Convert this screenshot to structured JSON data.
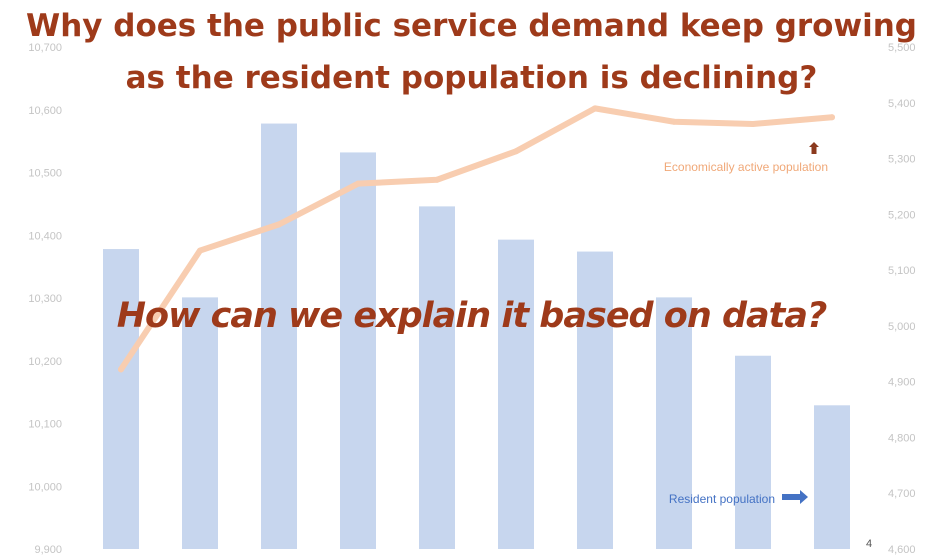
{
  "slide": {
    "title_line_1": "Why does the public service demand keep growing",
    "title_line_2": "as the resident population  is declining?",
    "question": "How can we explain it based on data?",
    "page_number": "4"
  },
  "colors": {
    "bar": "#c7d6ee",
    "line": "#f8cdb0",
    "title": "#9e3a1a",
    "axis_text": "#c4c4c4",
    "line_label": "#f0a878",
    "bar_label": "#4472c4",
    "arrow_up": "#8b3a1e",
    "arrow_right": "#4472c4"
  },
  "chart_data": {
    "type": "bar",
    "categories": [
      "",
      "",
      "",
      "",
      "",
      "",
      "",
      "",
      "",
      ""
    ],
    "series": [
      {
        "name": "Resident population",
        "type": "bar",
        "axis": "left",
        "values": [
          10378,
          10301,
          10578,
          10532,
          10446,
          10393,
          10374,
          10301,
          10208,
          10129
        ]
      },
      {
        "name": "Economically active population",
        "type": "line",
        "axis": "right",
        "values": [
          4922,
          5135,
          5182,
          5255,
          5262,
          5313,
          5390,
          5366,
          5362,
          5374
        ]
      }
    ],
    "y_left": {
      "min": 9900,
      "max": 10700,
      "ticks": [
        "9,900",
        "10,000",
        "10,100",
        "10,200",
        "10,300",
        "10,400",
        "10,500",
        "10,600",
        "10,700"
      ]
    },
    "y_right": {
      "min": 4600,
      "max": 5500,
      "ticks": [
        "4,600",
        "4,700",
        "4,800",
        "4,900",
        "5,000",
        "5,100",
        "5,200",
        "5,300",
        "5,400",
        "5,500"
      ]
    },
    "annotations": {
      "line_label": "Economically  active  population",
      "bar_label": "Resident  population"
    },
    "grid": false,
    "legend": "none"
  }
}
